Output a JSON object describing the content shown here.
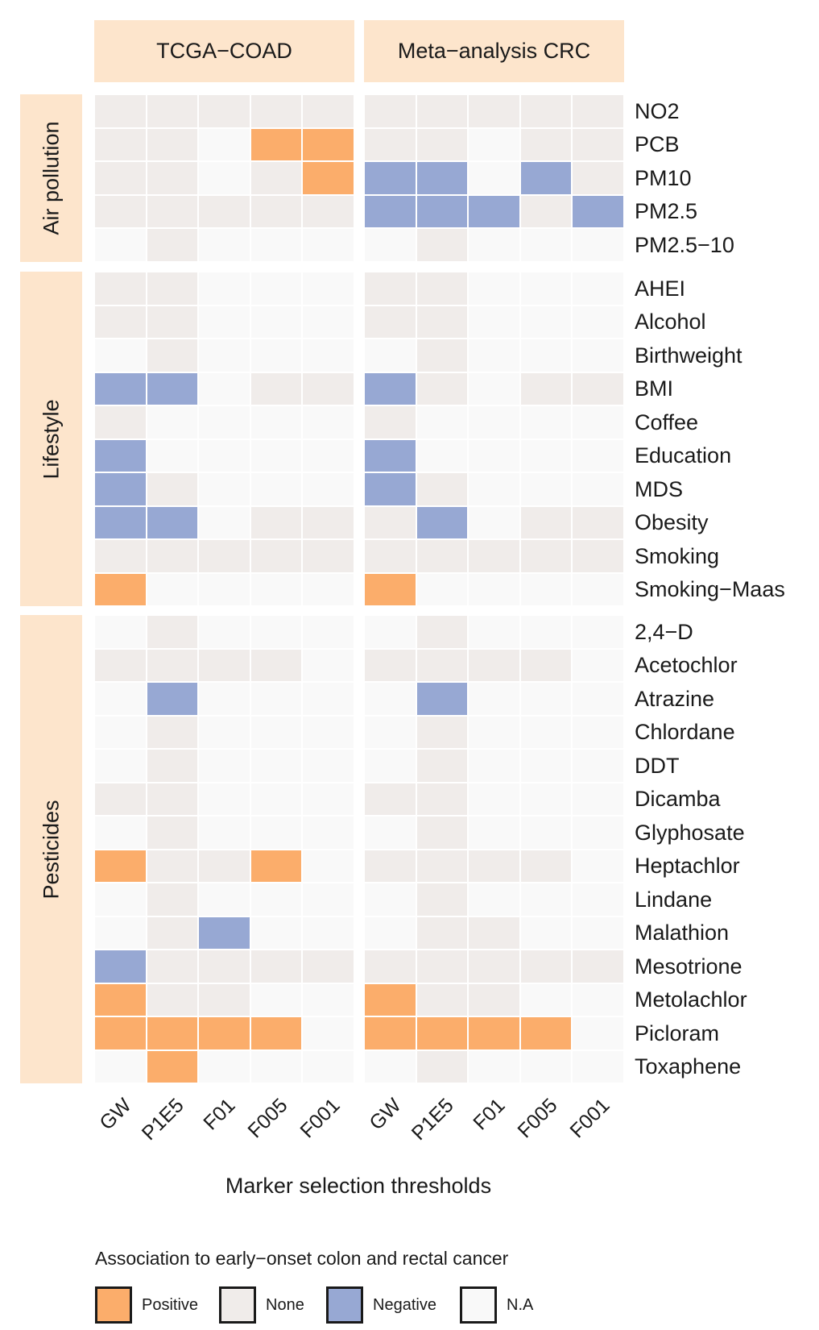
{
  "chart_data": {
    "type": "heatmap",
    "legend": {
      "title": "Association to early−onset colon and rectal cancer",
      "position": "bottom",
      "entries": [
        {
          "key": "P",
          "label": "Positive",
          "color": "#fbad6b"
        },
        {
          "key": "N",
          "label": "None",
          "color": "#f0ecea"
        },
        {
          "key": "G",
          "label": "Negative",
          "color": "#97a8d3"
        },
        {
          "key": "A",
          "label": "N.A",
          "color": "#f9f9f9"
        }
      ]
    },
    "xlabel": "Marker selection thresholds",
    "columns": [
      "GW",
      "P1E5",
      "F01",
      "F005",
      "F001"
    ],
    "panels": [
      "TCGA−COAD",
      "Meta−analysis CRC"
    ],
    "groups": [
      {
        "name": "Air pollution",
        "rows": [
          {
            "label": "NO2",
            "values": [
              [
                "N",
                "N",
                "N",
                "N",
                "N"
              ],
              [
                "N",
                "N",
                "N",
                "N",
                "N"
              ]
            ]
          },
          {
            "label": "PCB",
            "values": [
              [
                "N",
                "N",
                "A",
                "P",
                "P"
              ],
              [
                "N",
                "N",
                "A",
                "N",
                "N"
              ]
            ]
          },
          {
            "label": "PM10",
            "values": [
              [
                "N",
                "N",
                "A",
                "N",
                "P"
              ],
              [
                "G",
                "G",
                "A",
                "G",
                "N"
              ]
            ]
          },
          {
            "label": "PM2.5",
            "values": [
              [
                "N",
                "N",
                "N",
                "N",
                "N"
              ],
              [
                "G",
                "G",
                "G",
                "N",
                "G"
              ]
            ]
          },
          {
            "label": "PM2.5−10",
            "values": [
              [
                "A",
                "N",
                "A",
                "A",
                "A"
              ],
              [
                "A",
                "N",
                "A",
                "A",
                "A"
              ]
            ]
          }
        ]
      },
      {
        "name": "Lifestyle",
        "rows": [
          {
            "label": "AHEI",
            "values": [
              [
                "N",
                "N",
                "A",
                "A",
                "A"
              ],
              [
                "N",
                "N",
                "A",
                "A",
                "A"
              ]
            ]
          },
          {
            "label": "Alcohol",
            "values": [
              [
                "N",
                "N",
                "A",
                "A",
                "A"
              ],
              [
                "N",
                "N",
                "A",
                "A",
                "A"
              ]
            ]
          },
          {
            "label": "Birthweight",
            "values": [
              [
                "A",
                "N",
                "A",
                "A",
                "A"
              ],
              [
                "A",
                "N",
                "A",
                "A",
                "A"
              ]
            ]
          },
          {
            "label": "BMI",
            "values": [
              [
                "G",
                "G",
                "A",
                "N",
                "N"
              ],
              [
                "G",
                "N",
                "A",
                "N",
                "N"
              ]
            ]
          },
          {
            "label": "Coffee",
            "values": [
              [
                "N",
                "A",
                "A",
                "A",
                "A"
              ],
              [
                "N",
                "A",
                "A",
                "A",
                "A"
              ]
            ]
          },
          {
            "label": "Education",
            "values": [
              [
                "G",
                "A",
                "A",
                "A",
                "A"
              ],
              [
                "G",
                "A",
                "A",
                "A",
                "A"
              ]
            ]
          },
          {
            "label": "MDS",
            "values": [
              [
                "G",
                "N",
                "A",
                "A",
                "A"
              ],
              [
                "G",
                "N",
                "A",
                "A",
                "A"
              ]
            ]
          },
          {
            "label": "Obesity",
            "values": [
              [
                "G",
                "G",
                "A",
                "N",
                "N"
              ],
              [
                "N",
                "G",
                "A",
                "N",
                "N"
              ]
            ]
          },
          {
            "label": "Smoking",
            "values": [
              [
                "N",
                "N",
                "N",
                "N",
                "N"
              ],
              [
                "N",
                "N",
                "N",
                "N",
                "N"
              ]
            ]
          },
          {
            "label": "Smoking−Maas",
            "values": [
              [
                "P",
                "A",
                "A",
                "A",
                "A"
              ],
              [
                "P",
                "A",
                "A",
                "A",
                "A"
              ]
            ]
          }
        ]
      },
      {
        "name": "Pesticides",
        "rows": [
          {
            "label": "2,4−D",
            "values": [
              [
                "A",
                "N",
                "A",
                "A",
                "A"
              ],
              [
                "A",
                "N",
                "A",
                "A",
                "A"
              ]
            ]
          },
          {
            "label": "Acetochlor",
            "values": [
              [
                "N",
                "N",
                "N",
                "N",
                "A"
              ],
              [
                "N",
                "N",
                "N",
                "N",
                "A"
              ]
            ]
          },
          {
            "label": "Atrazine",
            "values": [
              [
                "A",
                "G",
                "A",
                "A",
                "A"
              ],
              [
                "A",
                "G",
                "A",
                "A",
                "A"
              ]
            ]
          },
          {
            "label": "Chlordane",
            "values": [
              [
                "A",
                "N",
                "A",
                "A",
                "A"
              ],
              [
                "A",
                "N",
                "A",
                "A",
                "A"
              ]
            ]
          },
          {
            "label": "DDT",
            "values": [
              [
                "A",
                "N",
                "A",
                "A",
                "A"
              ],
              [
                "A",
                "N",
                "A",
                "A",
                "A"
              ]
            ]
          },
          {
            "label": "Dicamba",
            "values": [
              [
                "N",
                "N",
                "A",
                "A",
                "A"
              ],
              [
                "N",
                "N",
                "A",
                "A",
                "A"
              ]
            ]
          },
          {
            "label": "Glyphosate",
            "values": [
              [
                "A",
                "N",
                "A",
                "A",
                "A"
              ],
              [
                "A",
                "N",
                "A",
                "A",
                "A"
              ]
            ]
          },
          {
            "label": "Heptachlor",
            "values": [
              [
                "P",
                "N",
                "N",
                "P",
                "A"
              ],
              [
                "N",
                "N",
                "N",
                "N",
                "A"
              ]
            ]
          },
          {
            "label": "Lindane",
            "values": [
              [
                "A",
                "N",
                "A",
                "A",
                "A"
              ],
              [
                "A",
                "N",
                "A",
                "A",
                "A"
              ]
            ]
          },
          {
            "label": "Malathion",
            "values": [
              [
                "A",
                "N",
                "G",
                "A",
                "A"
              ],
              [
                "A",
                "N",
                "N",
                "A",
                "A"
              ]
            ]
          },
          {
            "label": "Mesotrione",
            "values": [
              [
                "G",
                "N",
                "N",
                "N",
                "N"
              ],
              [
                "N",
                "N",
                "N",
                "N",
                "N"
              ]
            ]
          },
          {
            "label": "Metolachlor",
            "values": [
              [
                "P",
                "N",
                "N",
                "A",
                "A"
              ],
              [
                "P",
                "N",
                "N",
                "A",
                "A"
              ]
            ]
          },
          {
            "label": "Picloram",
            "values": [
              [
                "P",
                "P",
                "P",
                "P",
                "A"
              ],
              [
                "P",
                "P",
                "P",
                "P",
                "A"
              ]
            ]
          },
          {
            "label": "Toxaphene",
            "values": [
              [
                "A",
                "P",
                "A",
                "A",
                "A"
              ],
              [
                "A",
                "N",
                "A",
                "A",
                "A"
              ]
            ]
          }
        ]
      }
    ]
  }
}
